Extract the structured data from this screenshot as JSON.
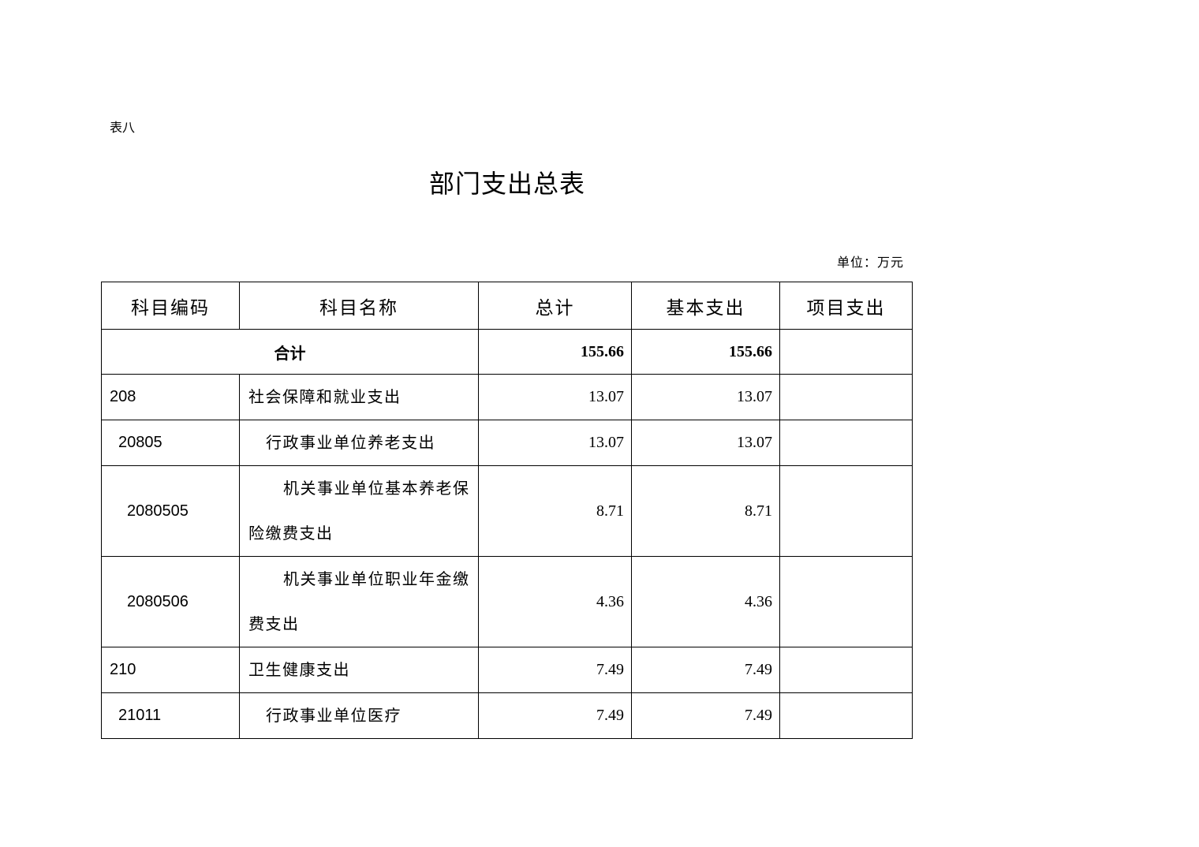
{
  "document": {
    "label": "表八",
    "title": "部门支出总表",
    "unit": "单位：万元"
  },
  "table": {
    "headers": [
      "科目编码",
      "科目名称",
      "总计",
      "基本支出",
      "项目支出"
    ],
    "total": {
      "label": "合计",
      "total": "155.66",
      "basic": "155.66",
      "project": ""
    },
    "rows": [
      {
        "code": "208",
        "name": "社会保障和就业支出",
        "total": "13.07",
        "basic": "13.07",
        "project": "",
        "level": 0
      },
      {
        "code": "20805",
        "name": "行政事业单位养老支出",
        "total": "13.07",
        "basic": "13.07",
        "project": "",
        "level": 1
      },
      {
        "code": "2080505",
        "name": "机关事业单位基本养老保险缴费支出",
        "total": "8.71",
        "basic": "8.71",
        "project": "",
        "level": 2
      },
      {
        "code": "2080506",
        "name": "机关事业单位职业年金缴费支出",
        "total": "4.36",
        "basic": "4.36",
        "project": "",
        "level": 2
      },
      {
        "code": "210",
        "name": "卫生健康支出",
        "total": "7.49",
        "basic": "7.49",
        "project": "",
        "level": 0
      },
      {
        "code": "21011",
        "name": "行政事业单位医疗",
        "total": "7.49",
        "basic": "7.49",
        "project": "",
        "level": 1
      }
    ]
  }
}
